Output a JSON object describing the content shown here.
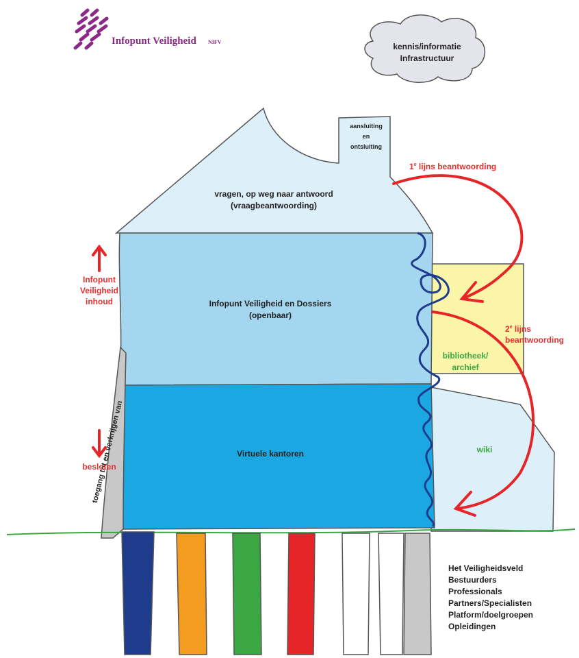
{
  "logo": {
    "name": "Infopunt Veiligheid",
    "suffix": "NIFV"
  },
  "cloud": {
    "lines": [
      "kennis/informatie",
      "Infrastructuur"
    ]
  },
  "chimney": {
    "lines": [
      "aansluiting",
      "en",
      "ontsluiting"
    ]
  },
  "roof": {
    "lines": [
      "vragen, op weg naar antwoord",
      "(vraagbeantwoording)"
    ]
  },
  "floor_public": {
    "lines": [
      "Infopunt Veiligheid en Dossiers",
      "(openbaar)"
    ]
  },
  "floor_private": {
    "label": "Virtuele kantoren"
  },
  "annex": {
    "library": [
      "bibliotheek/",
      "archief"
    ],
    "wiki": "wiki"
  },
  "first_line": {
    "number": "1",
    "sup": "e",
    "text": " lijns beantwoording"
  },
  "second_line": {
    "number": "2",
    "sup": "e",
    "text": " lijns",
    "line2": "beantwoording"
  },
  "side": {
    "up": [
      "Infopunt",
      "Veiligheid",
      "inhoud"
    ],
    "down": "besloten"
  },
  "ramp": "toegang tot en verkrijgen van",
  "legend": [
    "Het Veiligheidsveld",
    "Bestuurders",
    "Professionals",
    "Partners/Specialisten",
    "Platform/doelgroepen",
    "Opleidingen"
  ]
}
